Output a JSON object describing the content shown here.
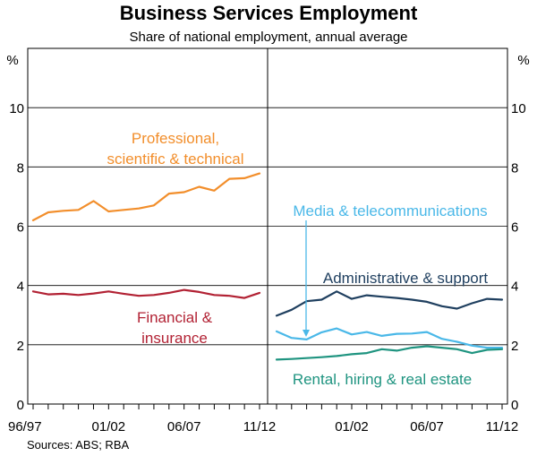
{
  "chart_data": {
    "type": "line",
    "title": "Business Services Employment",
    "subtitle": "Share of national employment, annual average",
    "ylabel": "%",
    "ylim": [
      0,
      12
    ],
    "yticks": [
      0,
      2,
      4,
      6,
      8,
      10
    ],
    "source": "Sources: ABS; RBA",
    "colors": {
      "professional": "#f28e2b",
      "financial": "#b22234",
      "media": "#4ab8e8",
      "administrative": "#1f3f5f",
      "rental": "#1f9480"
    },
    "panels": [
      {
        "id": "left",
        "x_tick_labels": [
          "96/97",
          "01/02",
          "06/07",
          "11/12"
        ],
        "series": [
          {
            "name": "Professional, scientific & technical",
            "label_lines": [
              "Professional,",
              "scientific & technical"
            ],
            "color_key": "professional",
            "values": [
              6.2,
              6.47,
              6.52,
              6.55,
              6.85,
              6.5,
              6.55,
              6.6,
              6.7,
              7.1,
              7.15,
              7.33,
              7.2,
              7.6,
              7.62,
              7.78
            ]
          },
          {
            "name": "Financial & insurance",
            "label_lines": [
              "Financial &",
              "insurance"
            ],
            "color_key": "financial",
            "values": [
              3.8,
              3.7,
              3.72,
              3.68,
              3.73,
              3.8,
              3.72,
              3.65,
              3.68,
              3.75,
              3.85,
              3.78,
              3.68,
              3.65,
              3.58,
              3.75
            ]
          }
        ]
      },
      {
        "id": "right",
        "x_tick_labels": [
          "01/02",
          "06/07",
          "11/12"
        ],
        "series": [
          {
            "name": "Media & telecommunications",
            "label_lines": [
              "Media & telecommunications"
            ],
            "color_key": "media",
            "values": [
              2.45,
              2.23,
              2.18,
              2.42,
              2.55,
              2.35,
              2.43,
              2.3,
              2.37,
              2.38,
              2.43,
              2.2,
              2.1,
              1.97,
              1.9,
              1.9
            ]
          },
          {
            "name": "Administrative & support",
            "label_lines": [
              "Administrative & support"
            ],
            "color_key": "administrative",
            "values": [
              2.98,
              3.18,
              3.47,
              3.52,
              3.8,
              3.55,
              3.67,
              3.62,
              3.58,
              3.52,
              3.45,
              3.3,
              3.22,
              3.4,
              3.55,
              3.52
            ]
          },
          {
            "name": "Rental, hiring & real estate",
            "label_lines": [
              "Rental, hiring & real estate"
            ],
            "color_key": "rental",
            "values": [
              1.5,
              1.52,
              1.55,
              1.58,
              1.62,
              1.68,
              1.72,
              1.85,
              1.8,
              1.9,
              1.95,
              1.9,
              1.85,
              1.72,
              1.83,
              1.85
            ]
          }
        ]
      }
    ]
  }
}
